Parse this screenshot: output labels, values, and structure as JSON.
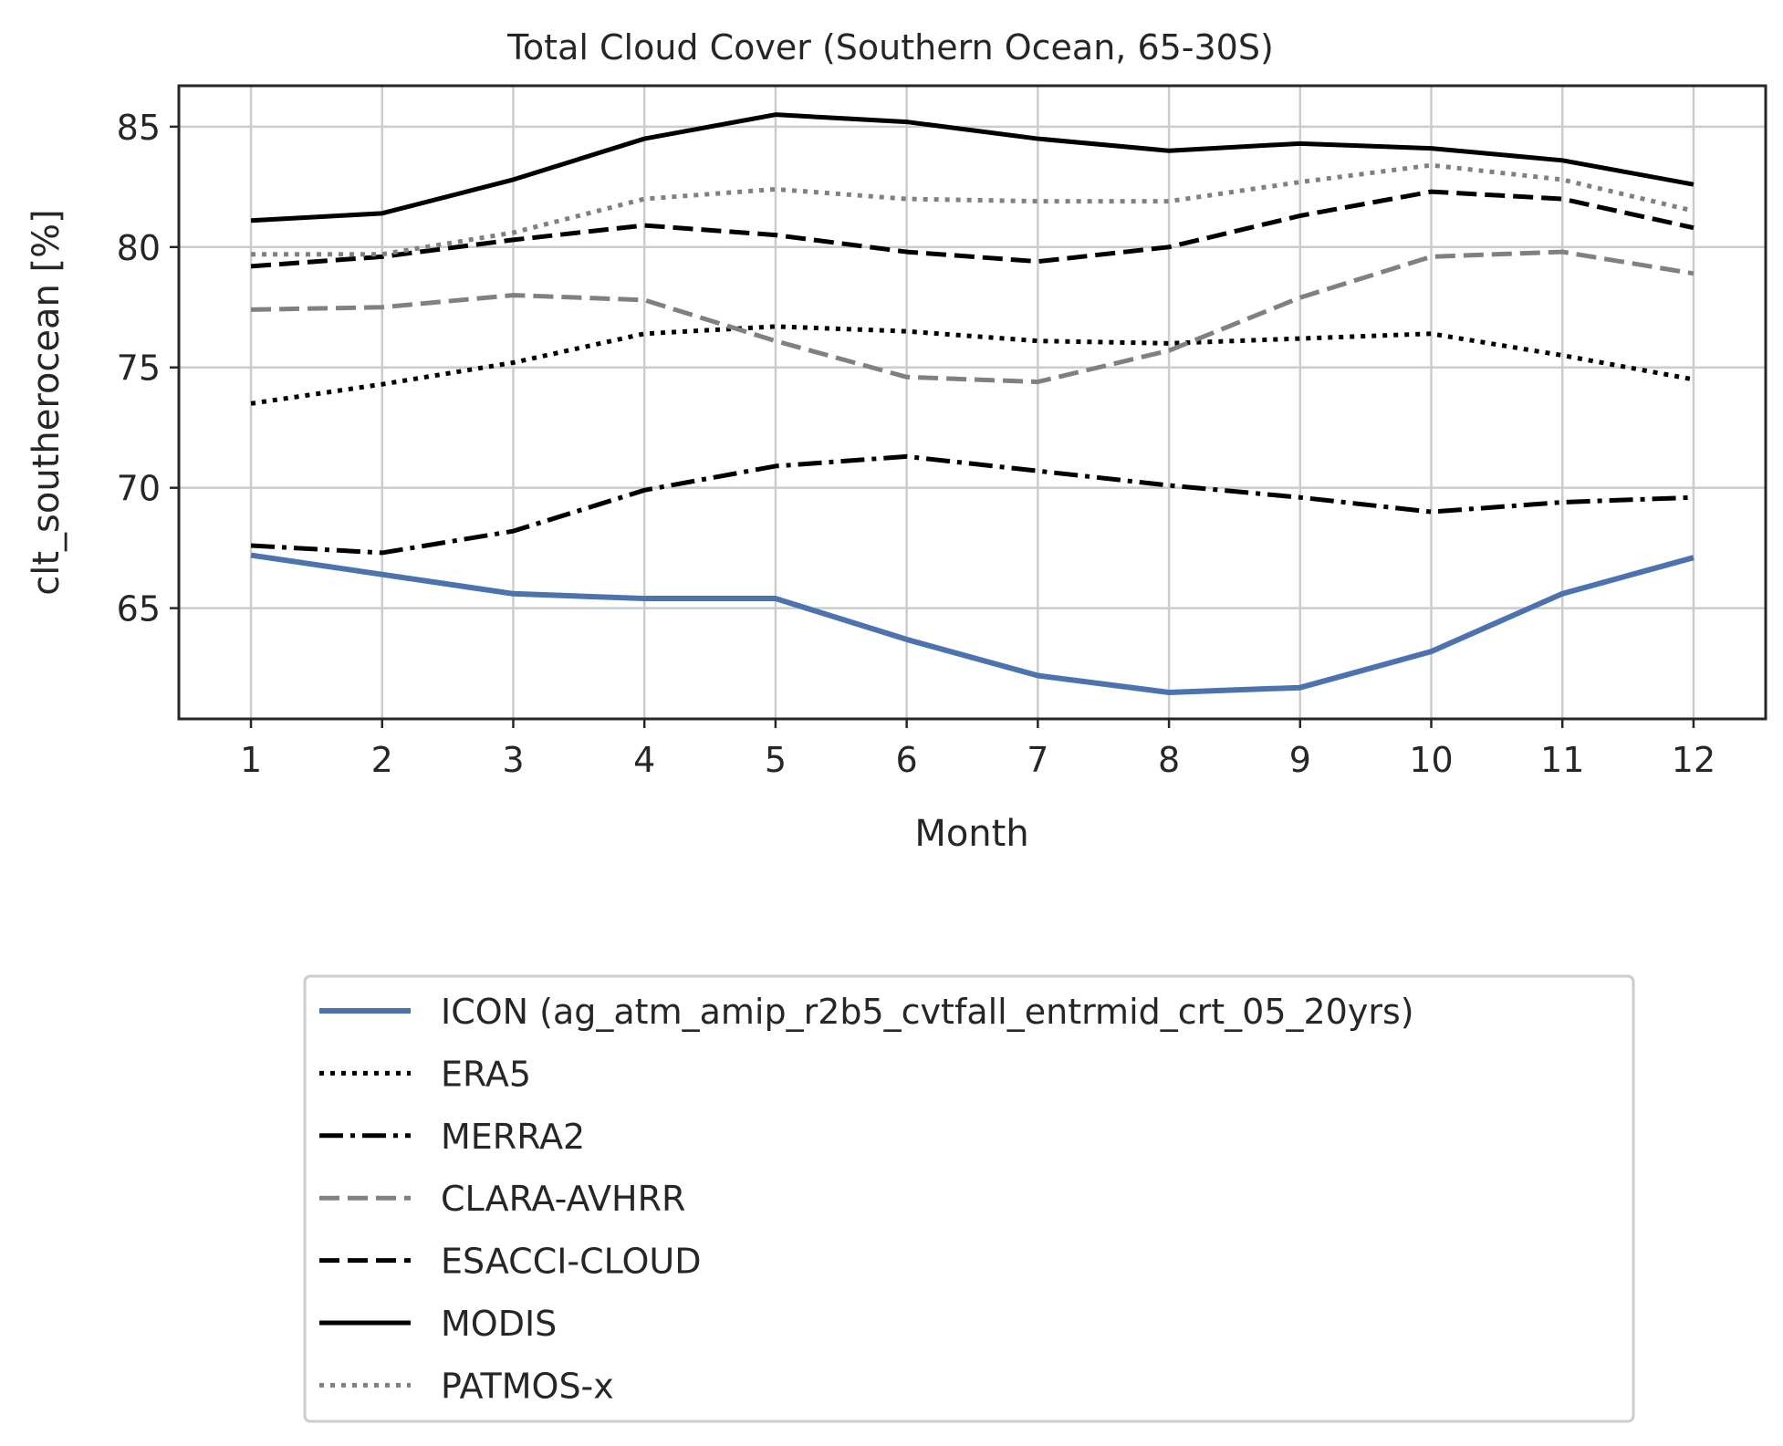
{
  "chart_data": {
    "type": "line",
    "title": "Total Cloud Cover (Southern Ocean, 65-30S)",
    "xlabel": "Month",
    "ylabel": "clt_southerocean [%]",
    "x": [
      1,
      2,
      3,
      4,
      5,
      6,
      7,
      8,
      9,
      10,
      11,
      12
    ],
    "xlim": [
      0.45,
      12.55
    ],
    "ylim": [
      60.4,
      86.7
    ],
    "yticks": [
      65,
      70,
      75,
      80,
      85
    ],
    "grid": true,
    "legend_position": "below",
    "series": [
      {
        "name": "ICON (ag_atm_amip_r2b5_cvtfall_entrmid_crt_05_20yrs)",
        "color": "#4c72b0",
        "style": "solid",
        "width": 6,
        "values": [
          67.2,
          66.4,
          65.6,
          65.4,
          65.4,
          63.7,
          62.2,
          61.5,
          61.7,
          63.2,
          65.6,
          67.1
        ]
      },
      {
        "name": "ERA5",
        "color": "#000000",
        "style": "dotted",
        "width": 5,
        "values": [
          73.5,
          74.3,
          75.2,
          76.4,
          76.7,
          76.5,
          76.1,
          76.0,
          76.2,
          76.4,
          75.5,
          74.5
        ]
      },
      {
        "name": "MERRA2",
        "color": "#000000",
        "style": "dashdot",
        "width": 5,
        "values": [
          67.6,
          67.3,
          68.2,
          69.9,
          70.9,
          71.3,
          70.7,
          70.1,
          69.6,
          69.0,
          69.4,
          69.6
        ]
      },
      {
        "name": "CLARA-AVHRR",
        "color": "#808080",
        "style": "dashed",
        "width": 5,
        "values": [
          77.4,
          77.5,
          78.0,
          77.8,
          76.1,
          74.6,
          74.4,
          75.7,
          77.9,
          79.6,
          79.8,
          78.9
        ]
      },
      {
        "name": "ESACCI-CLOUD",
        "color": "#000000",
        "style": "dashed",
        "width": 5,
        "values": [
          79.2,
          79.6,
          80.3,
          80.9,
          80.5,
          79.8,
          79.4,
          80.0,
          81.3,
          82.3,
          82.0,
          80.8
        ]
      },
      {
        "name": "MODIS",
        "color": "#000000",
        "style": "solid",
        "width": 5,
        "values": [
          81.1,
          81.4,
          82.8,
          84.5,
          85.5,
          85.2,
          84.5,
          84.0,
          84.3,
          84.1,
          83.6,
          82.6
        ]
      },
      {
        "name": "PATMOS-x",
        "color": "#808080",
        "style": "dotted",
        "width": 5,
        "values": [
          79.7,
          79.7,
          80.6,
          82.0,
          82.4,
          82.0,
          81.9,
          81.9,
          82.7,
          83.4,
          82.8,
          81.5
        ]
      }
    ]
  }
}
